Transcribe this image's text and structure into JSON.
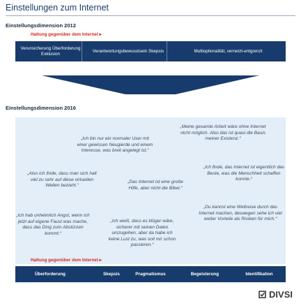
{
  "header": {
    "title": "Einstellungen zum Internet"
  },
  "section_2012": {
    "title": "Einstellungsdimension 2012",
    "axis_label": "Haltung gegenüber dem Internet",
    "cells": [
      "Verunsicherung Überforderung Exklusion",
      "Verantwortungsbewusstsein Skepsis",
      "Multioptionalität, vernetzt-entgrenzt"
    ]
  },
  "section_2016": {
    "title": "Einstellungsdimension 2016",
    "quotes": [
      "„Ich bin nur ein normaler User mit einer gewissen Neugierde und einem Interesse, was breit angelegt ist.“",
      "„Meine gesamte Arbeit wäre ohne Internet nicht möglich. Also das ist quasi die Basis meiner Existenz.“",
      "„Also ich finde, dass man sich halt viel zu sehr auf diese virtuellen Welten bezieht.“",
      "„Das Internet ist eine große Hilfe, aber nicht die Bibel.“",
      "„Ich finde, das Internet ist eigentlich das Beste, was die Menschheit schaffen konnte.“",
      "„Ich hab unheimlich Angst, wenn ich jetzt auf eigene Faust was mache, dass das Ding zum Abstürzen kommt.“",
      "„Ich weiß, dass es klüger wäre, sicherer mit seinen Daten umzugehen, aber da habe ich keine Lust zu, was soll mir schon passieren.“",
      "„Du kannst eine Weltreise durch das Internet machen, deswegen sehe ich viel weiter Vorteile als Risiken für mich.“"
    ],
    "axis_label": "Haltung gegenüber dem Internet",
    "cells": [
      "Überforderung",
      "Skepsis",
      "Pragmatismus",
      "Begeisterung",
      "Identifikation"
    ]
  },
  "logo": "DIVSI"
}
